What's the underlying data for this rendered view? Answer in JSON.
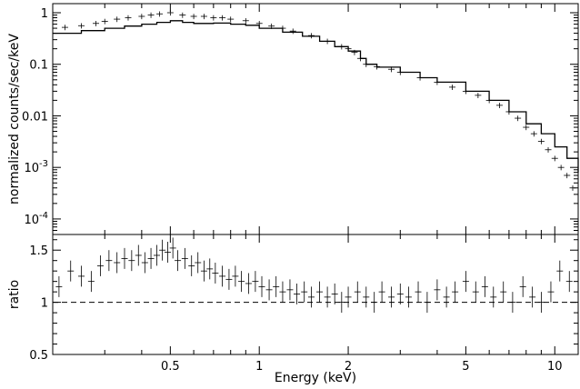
{
  "chart_data": [
    {
      "type": "scatter",
      "panel": "spectrum",
      "xlabel": "",
      "ylabel": "normalized counts/sec/keV",
      "xscale": "log",
      "yscale": "log",
      "xlim": [
        0.2,
        12
      ],
      "ylim": [
        5e-05,
        1.5
      ],
      "y_tick_labels": [
        "1",
        "0.1",
        "0.01",
        "10^-3",
        "10^-4"
      ],
      "y_tick_values": [
        1,
        0.1,
        0.01,
        0.001,
        0.0001
      ],
      "series": [
        {
          "kind": "data with error bars",
          "x": [
            0.22,
            0.25,
            0.28,
            0.3,
            0.33,
            0.36,
            0.4,
            0.43,
            0.46,
            0.5,
            0.55,
            0.6,
            0.65,
            0.7,
            0.75,
            0.8,
            0.9,
            1.0,
            1.1,
            1.2,
            1.3,
            1.5,
            1.7,
            1.9,
            2.0,
            2.1,
            2.2,
            2.3,
            2.5,
            2.8,
            3.0,
            3.5,
            4.0,
            4.5,
            5.0,
            5.5,
            6.0,
            6.5,
            7.0,
            7.5,
            8.0,
            8.5,
            9.0,
            9.5,
            10.0,
            10.5,
            11.0,
            11.5
          ],
          "y": [
            0.52,
            0.56,
            0.62,
            0.68,
            0.75,
            0.8,
            0.85,
            0.9,
            0.95,
            1.0,
            0.9,
            0.85,
            0.85,
            0.8,
            0.8,
            0.75,
            0.7,
            0.62,
            0.55,
            0.5,
            0.44,
            0.36,
            0.28,
            0.22,
            0.2,
            0.17,
            0.13,
            0.1,
            0.09,
            0.08,
            0.07,
            0.055,
            0.045,
            0.036,
            0.03,
            0.025,
            0.02,
            0.016,
            0.012,
            0.009,
            0.006,
            0.0045,
            0.0032,
            0.0022,
            0.0015,
            0.001,
            0.0007,
            0.0004
          ],
          "yerr_frac": 0.12
        },
        {
          "kind": "model (step line)",
          "x": [
            0.2,
            0.25,
            0.3,
            0.35,
            0.4,
            0.45,
            0.5,
            0.55,
            0.6,
            0.7,
            0.8,
            0.9,
            1.0,
            1.2,
            1.4,
            1.6,
            1.8,
            2.0,
            2.2,
            2.3,
            2.5,
            3.0,
            3.5,
            4.0,
            5.0,
            6.0,
            7.0,
            8.0,
            9.0,
            10.0,
            11.0,
            12.0
          ],
          "y": [
            0.4,
            0.45,
            0.5,
            0.55,
            0.6,
            0.65,
            0.7,
            0.65,
            0.62,
            0.63,
            0.6,
            0.57,
            0.5,
            0.42,
            0.35,
            0.28,
            0.22,
            0.18,
            0.13,
            0.1,
            0.088,
            0.07,
            0.055,
            0.045,
            0.03,
            0.02,
            0.012,
            0.007,
            0.0045,
            0.0025,
            0.0015,
            0.0008
          ]
        }
      ]
    },
    {
      "type": "scatter",
      "panel": "ratio",
      "xlabel": "Energy (keV)",
      "ylabel": "ratio",
      "xscale": "log",
      "xlim": [
        0.2,
        12
      ],
      "ylim": [
        0.5,
        1.65
      ],
      "x_tick_labels": [
        "0.5",
        "1",
        "2",
        "5",
        "10"
      ],
      "x_tick_values": [
        0.5,
        1,
        2,
        5,
        10
      ],
      "y_tick_labels": [
        "0.5",
        "1",
        "1.5"
      ],
      "y_tick_values": [
        0.5,
        1,
        1.5
      ],
      "reference_line": 1.0,
      "series": [
        {
          "kind": "ratio with error bars",
          "x": [
            0.21,
            0.23,
            0.25,
            0.27,
            0.29,
            0.31,
            0.33,
            0.35,
            0.37,
            0.39,
            0.41,
            0.43,
            0.45,
            0.47,
            0.49,
            0.51,
            0.53,
            0.56,
            0.59,
            0.62,
            0.65,
            0.68,
            0.71,
            0.75,
            0.79,
            0.83,
            0.87,
            0.92,
            0.97,
            1.02,
            1.08,
            1.14,
            1.2,
            1.27,
            1.34,
            1.42,
            1.5,
            1.6,
            1.7,
            1.8,
            1.9,
            2.0,
            2.15,
            2.3,
            2.45,
            2.6,
            2.8,
            3.0,
            3.2,
            3.45,
            3.7,
            4.0,
            4.3,
            4.6,
            5.0,
            5.4,
            5.8,
            6.2,
            6.7,
            7.2,
            7.8,
            8.4,
            9.0,
            9.7,
            10.4,
            11.2
          ],
          "y": [
            1.15,
            1.3,
            1.25,
            1.2,
            1.35,
            1.4,
            1.38,
            1.42,
            1.4,
            1.45,
            1.38,
            1.42,
            1.45,
            1.5,
            1.48,
            1.52,
            1.4,
            1.42,
            1.35,
            1.38,
            1.3,
            1.32,
            1.28,
            1.25,
            1.22,
            1.25,
            1.2,
            1.18,
            1.2,
            1.15,
            1.12,
            1.15,
            1.1,
            1.12,
            1.08,
            1.1,
            1.05,
            1.1,
            1.05,
            1.08,
            1.0,
            1.05,
            1.1,
            1.05,
            1.0,
            1.1,
            1.05,
            1.08,
            1.05,
            1.1,
            1.0,
            1.12,
            1.05,
            1.1,
            1.2,
            1.1,
            1.15,
            1.05,
            1.1,
            1.0,
            1.15,
            1.05,
            1.0,
            1.1,
            1.3,
            1.2
          ],
          "yerr": 0.1
        }
      ]
    }
  ]
}
